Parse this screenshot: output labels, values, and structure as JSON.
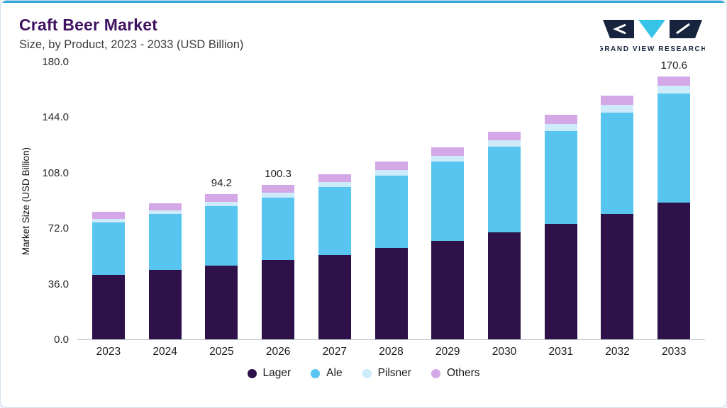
{
  "header": {
    "title": "Craft Beer Market",
    "subtitle": "Size, by Product, 2023 - 2033 (USD Billion)",
    "logo_text": "GRAND VIEW RESEARCH"
  },
  "colors": {
    "accent_line": "#2ba6dc",
    "card_border": "#cfe0ec",
    "title_text": "#3f1260",
    "logo_navy": "#17243e",
    "logo_teal": "#35c4e8",
    "lager": "#2d1148",
    "ale": "#58c5f0",
    "pilsner": "#cdebfa",
    "others": "#d4a7e6"
  },
  "chart_data": {
    "type": "bar",
    "stacked": true,
    "title": "Craft Beer Market",
    "subtitle": "Size, by Product, 2023 - 2033 (USD Billion)",
    "xlabel": "",
    "ylabel": "Market Size (USD Billion)",
    "ylim": [
      0,
      180
    ],
    "y_ticks": [
      "0.0",
      "36.0",
      "72.0",
      "108.0",
      "144.0",
      "180.0"
    ],
    "grid": false,
    "legend_position": "bottom",
    "categories": [
      "2023",
      "2024",
      "2025",
      "2026",
      "2027",
      "2028",
      "2029",
      "2030",
      "2031",
      "2032",
      "2033"
    ],
    "series": [
      {
        "name": "Lager",
        "color": "#2d1148",
        "values": [
          42.0,
          45.0,
          48.0,
          51.5,
          55.0,
          59.5,
          64.0,
          69.5,
          75.0,
          81.5,
          89.0
        ]
      },
      {
        "name": "Ale",
        "color": "#58c5f0",
        "values": [
          34.0,
          36.3,
          38.5,
          40.6,
          44.0,
          47.0,
          51.5,
          55.5,
          60.5,
          66.0,
          70.6
        ]
      },
      {
        "name": "Pilsner",
        "color": "#cdebfa",
        "values": [
          2.5,
          2.7,
          2.9,
          3.1,
          3.3,
          3.6,
          3.8,
          4.2,
          4.5,
          4.8,
          5.0
        ]
      },
      {
        "name": "Others",
        "color": "#d4a7e6",
        "values": [
          4.5,
          4.5,
          4.8,
          5.1,
          5.2,
          5.4,
          5.7,
          5.8,
          6.0,
          6.2,
          6.0
        ]
      }
    ],
    "totals": [
      83.0,
      88.5,
      94.2,
      100.3,
      107.5,
      115.5,
      125.0,
      135.0,
      146.0,
      158.5,
      170.6
    ],
    "bar_total_labels": {
      "2025": "94.2",
      "2026": "100.3",
      "2033": "170.6"
    }
  }
}
